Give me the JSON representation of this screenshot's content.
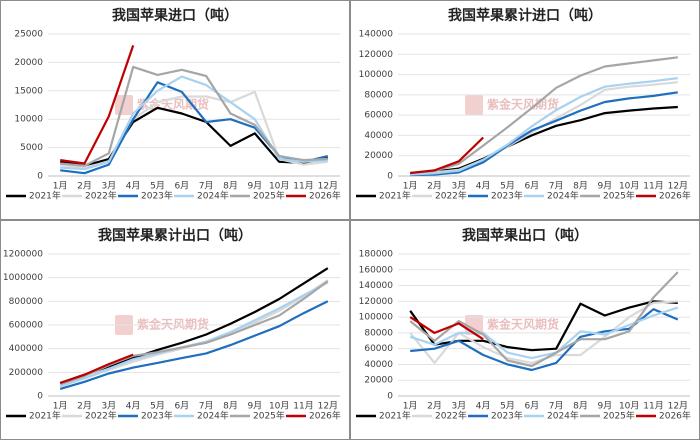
{
  "watermark": "紫金天风期货",
  "chart_data": [
    {
      "type": "line",
      "title": "我国苹果进口（吨）",
      "legend": "bottom",
      "grid": true,
      "categories": [
        "1月",
        "2月",
        "3月",
        "4月",
        "5月",
        "6月",
        "7月",
        "8月",
        "9月",
        "10月",
        "11月",
        "12月"
      ],
      "ylim": [
        0,
        25000
      ],
      "yticks": [
        0,
        5000,
        10000,
        15000,
        20000,
        25000
      ],
      "series": [
        {
          "name": "2021年",
          "color": "#000000",
          "values": [
            2500,
            1800,
            3000,
            9500,
            12000,
            11000,
            9500,
            5300,
            7500,
            2500,
            2300,
            3200
          ]
        },
        {
          "name": "2022年",
          "color": "#d9d9d9",
          "values": [
            2000,
            1500,
            2500,
            10000,
            13000,
            14000,
            14000,
            13000,
            14800,
            3000,
            2000,
            2500
          ]
        },
        {
          "name": "2023年",
          "color": "#1f6fbf",
          "values": [
            1000,
            500,
            2000,
            10000,
            16500,
            14800,
            9500,
            10000,
            8500,
            3500,
            2500,
            3500
          ]
        },
        {
          "name": "2024年",
          "color": "#a9d2f0",
          "values": [
            1500,
            1200,
            2500,
            11000,
            15000,
            17500,
            16000,
            13000,
            10000,
            3000,
            2500,
            2800
          ]
        },
        {
          "name": "2025年",
          "color": "#a6a6a6",
          "values": [
            2200,
            1800,
            4000,
            19200,
            17800,
            18700,
            17600,
            11000,
            9000,
            3500,
            2800,
            3000
          ]
        },
        {
          "name": "2026年",
          "color": "#c00000",
          "values": [
            2800,
            2200,
            10500,
            23000,
            null,
            null,
            null,
            null,
            null,
            null,
            null,
            null
          ]
        }
      ]
    },
    {
      "type": "line",
      "title": "我国苹果累计进口（吨）",
      "legend": "bottom",
      "grid": true,
      "categories": [
        "1月",
        "2月",
        "3月",
        "4月",
        "5月",
        "6月",
        "7月",
        "8月",
        "9月",
        "10月",
        "11月",
        "12月"
      ],
      "ylim": [
        0,
        140000
      ],
      "yticks": [
        0,
        20000,
        40000,
        60000,
        80000,
        100000,
        120000,
        140000
      ],
      "series": [
        {
          "name": "2021年",
          "color": "#000000",
          "values": [
            2500,
            4300,
            7300,
            17000,
            29000,
            40000,
            49500,
            55000,
            62000,
            64500,
            66500,
            68000
          ]
        },
        {
          "name": "2022年",
          "color": "#d9d9d9",
          "values": [
            2000,
            3500,
            6000,
            16000,
            29000,
            43000,
            57000,
            70000,
            85000,
            88000,
            90000,
            92500
          ]
        },
        {
          "name": "2023年",
          "color": "#1f6fbf",
          "values": [
            1000,
            1500,
            3500,
            13500,
            30000,
            45000,
            54500,
            64500,
            73000,
            76500,
            79000,
            82500
          ]
        },
        {
          "name": "2024年",
          "color": "#a9d2f0",
          "values": [
            1500,
            2700,
            5200,
            16000,
            31000,
            49000,
            65000,
            78000,
            88000,
            91000,
            93500,
            96500
          ]
        },
        {
          "name": "2025年",
          "color": "#a6a6a6",
          "values": [
            3000,
            5000,
            12000,
            30000,
            48000,
            67000,
            87000,
            99000,
            108000,
            111000,
            114000,
            117000
          ]
        },
        {
          "name": "2026年",
          "color": "#c00000",
          "values": [
            3000,
            5500,
            14500,
            38000,
            null,
            null,
            null,
            null,
            null,
            null,
            null,
            null
          ]
        }
      ]
    },
    {
      "type": "line",
      "title": "我国苹果累计出口（吨）",
      "legend": "bottom",
      "grid": true,
      "categories": [
        "1月",
        "2月",
        "3月",
        "4月",
        "5月",
        "6月",
        "7月",
        "8月",
        "9月",
        "10月",
        "11月",
        "12月"
      ],
      "ylim": [
        0,
        1200000
      ],
      "yticks": [
        0,
        200000,
        400000,
        600000,
        800000,
        1000000,
        1200000
      ],
      "series": [
        {
          "name": "2021年",
          "color": "#000000",
          "values": [
            110000,
            180000,
            250000,
            320000,
            390000,
            450000,
            520000,
            610000,
            710000,
            820000,
            950000,
            1080000
          ]
        },
        {
          "name": "2022年",
          "color": "#d9d9d9",
          "values": [
            90000,
            150000,
            220000,
            290000,
            350000,
            400000,
            460000,
            540000,
            620000,
            720000,
            840000,
            980000
          ]
        },
        {
          "name": "2023年",
          "color": "#1f6fbf",
          "values": [
            60000,
            120000,
            190000,
            240000,
            280000,
            320000,
            360000,
            430000,
            510000,
            590000,
            700000,
            800000
          ]
        },
        {
          "name": "2024年",
          "color": "#a9d2f0",
          "values": [
            80000,
            150000,
            230000,
            310000,
            360000,
            410000,
            460000,
            540000,
            640000,
            740000,
            850000,
            960000
          ]
        },
        {
          "name": "2025年",
          "color": "#a6a6a6",
          "values": [
            100000,
            170000,
            260000,
            340000,
            370000,
            410000,
            450000,
            520000,
            600000,
            680000,
            820000,
            970000
          ]
        },
        {
          "name": "2026年",
          "color": "#c00000",
          "values": [
            110000,
            180000,
            270000,
            350000,
            null,
            null,
            null,
            null,
            null,
            null,
            null,
            null
          ]
        }
      ]
    },
    {
      "type": "line",
      "title": "我国苹果出口（吨）",
      "legend": "bottom",
      "grid": true,
      "categories": [
        "1月",
        "2月",
        "3月",
        "4月",
        "5月",
        "6月",
        "7月",
        "8月",
        "9月",
        "10月",
        "11月",
        "12月"
      ],
      "ylim": [
        0,
        180000
      ],
      "yticks": [
        0,
        20000,
        40000,
        60000,
        80000,
        100000,
        120000,
        140000,
        160000,
        180000
      ],
      "series": [
        {
          "name": "2021年",
          "color": "#000000",
          "values": [
            108000,
            65000,
            70000,
            70000,
            62000,
            58000,
            60000,
            117000,
            102000,
            112000,
            120000,
            118000
          ]
        },
        {
          "name": "2022年",
          "color": "#d9d9d9",
          "values": [
            80000,
            42000,
            80000,
            62000,
            48000,
            42000,
            52000,
            52000,
            75000,
            100000,
            118000,
            120000
          ]
        },
        {
          "name": "2023年",
          "color": "#1f6fbf",
          "values": [
            57000,
            60000,
            70000,
            52000,
            40000,
            33000,
            42000,
            75000,
            82000,
            85000,
            110000,
            97000
          ]
        },
        {
          "name": "2024年",
          "color": "#a9d2f0",
          "values": [
            75000,
            65000,
            80000,
            80000,
            55000,
            48000,
            55000,
            82000,
            78000,
            90000,
            102000,
            112000
          ]
        },
        {
          "name": "2025年",
          "color": "#a6a6a6",
          "values": [
            95000,
            70000,
            95000,
            78000,
            45000,
            38000,
            55000,
            72000,
            72000,
            82000,
            125000,
            157000
          ]
        },
        {
          "name": "2026年",
          "color": "#c00000",
          "values": [
            100000,
            80000,
            92000,
            72000,
            null,
            null,
            null,
            null,
            null,
            null,
            null,
            null
          ]
        }
      ]
    }
  ]
}
